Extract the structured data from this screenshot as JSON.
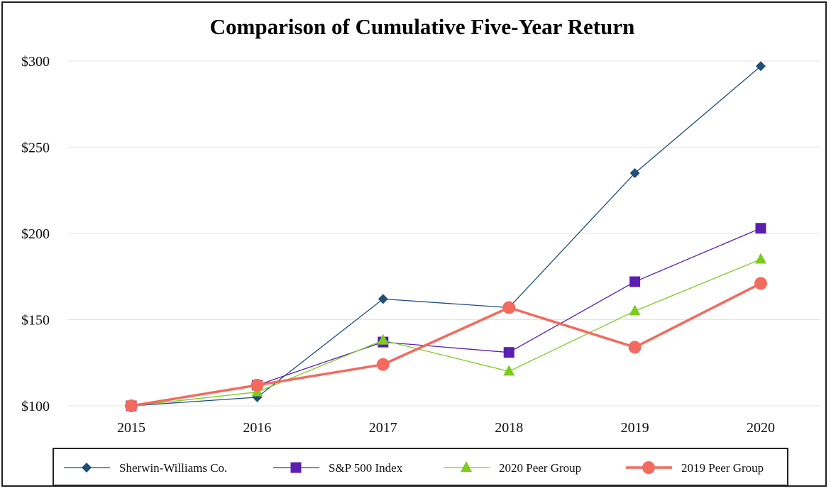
{
  "chart_data": {
    "type": "line",
    "title": "Comparison of Cumulative Five-Year Return",
    "xlabel": "",
    "ylabel": "",
    "categories": [
      "2015",
      "2016",
      "2017",
      "2018",
      "2019",
      "2020"
    ],
    "ylim": [
      100,
      300
    ],
    "yticks": [
      100,
      150,
      200,
      250,
      300
    ],
    "ytick_labels": [
      "$100",
      "$150",
      "$200",
      "$250",
      "$300"
    ],
    "grid": "horizontal",
    "legend_position": "bottom",
    "series": [
      {
        "name": "Sherwin-Williams Co.",
        "marker": "diamond",
        "color": "#1f4e79",
        "line_width": 1.3,
        "values": [
          100,
          105,
          162,
          157,
          235,
          297
        ]
      },
      {
        "name": "S&P 500 Index",
        "marker": "square",
        "color": "#5a1fb0",
        "line_width": 1.3,
        "values": [
          100,
          112,
          137,
          131,
          172,
          203
        ]
      },
      {
        "name": "2020 Peer Group",
        "marker": "triangle",
        "color": "#7ccc1f",
        "line_width": 1.3,
        "values": [
          100,
          108,
          138,
          120,
          155,
          185
        ]
      },
      {
        "name": "2019 Peer Group",
        "marker": "circle",
        "color": "#f26b5e",
        "line_width": 3.5,
        "values": [
          100,
          112,
          124,
          157,
          134,
          171
        ]
      }
    ]
  }
}
